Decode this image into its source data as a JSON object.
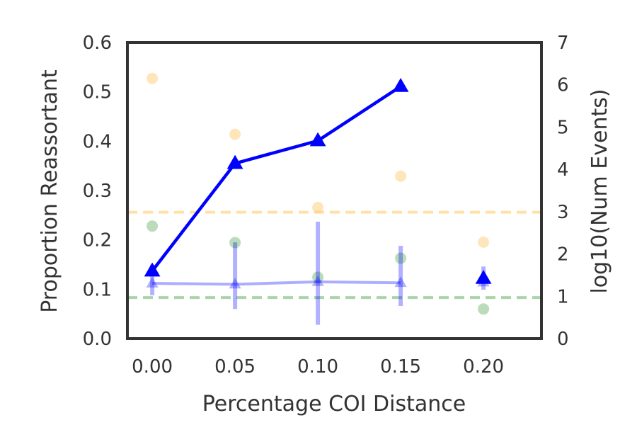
{
  "chart_data": {
    "type": "line",
    "xlabel": "Percentage COI Distance",
    "ylabel": "Proportion Reassortant",
    "y2label": "log10(Num Events)",
    "x_ticks": [
      "0.00",
      "0.05",
      "0.10",
      "0.15",
      "0.20"
    ],
    "y_ticks": [
      "0.0",
      "0.1",
      "0.2",
      "0.3",
      "0.4",
      "0.5",
      "0.6"
    ],
    "y2_ticks": [
      "0",
      "1",
      "2",
      "3",
      "4",
      "5",
      "6",
      "7"
    ],
    "xlim": [
      -0.015,
      0.235
    ],
    "ylim": [
      0,
      0.6
    ],
    "y2lim": [
      0,
      7
    ],
    "grid": false,
    "series": [
      {
        "axis": "left",
        "style": "solid-line-triangles",
        "color": "#0000ff",
        "points": [
          {
            "x": 0.0,
            "y": 0.137
          },
          {
            "x": 0.05,
            "y": 0.355
          },
          {
            "x": 0.1,
            "y": 0.401
          },
          {
            "x": 0.15,
            "y": 0.511
          }
        ]
      },
      {
        "axis": "left",
        "style": "triangle-only",
        "color": "#0000ff",
        "points": [
          {
            "x": 0.2,
            "y": 0.122
          }
        ]
      },
      {
        "axis": "left",
        "style": "faded-line-triangles-with-error-bars",
        "color": "#0000ff",
        "points": [
          {
            "x": 0.0,
            "y": 0.112,
            "lo": 0.088,
            "hi": 0.15
          },
          {
            "x": 0.05,
            "y": 0.11,
            "lo": 0.06,
            "hi": 0.195
          },
          {
            "x": 0.1,
            "y": 0.115,
            "lo": 0.028,
            "hi": 0.237
          },
          {
            "x": 0.15,
            "y": 0.113,
            "lo": 0.066,
            "hi": 0.188
          },
          {
            "x": 0.2,
            "y": 0.114,
            "lo": 0.099,
            "hi": 0.146
          }
        ]
      },
      {
        "axis": "right",
        "style": "points",
        "color": "#ffc766",
        "points": [
          {
            "x": 0.0,
            "y": 6.15
          },
          {
            "x": 0.05,
            "y": 4.83
          },
          {
            "x": 0.1,
            "y": 3.1
          },
          {
            "x": 0.15,
            "y": 3.84
          },
          {
            "x": 0.2,
            "y": 2.28
          }
        ]
      },
      {
        "axis": "right",
        "style": "points",
        "color": "#66b266",
        "points": [
          {
            "x": 0.0,
            "y": 2.66
          },
          {
            "x": 0.05,
            "y": 2.27
          },
          {
            "x": 0.1,
            "y": 1.45
          },
          {
            "x": 0.15,
            "y": 1.9
          },
          {
            "x": 0.2,
            "y": 0.7
          }
        ]
      }
    ],
    "reference_lines": [
      {
        "axis": "left",
        "y": 0.256,
        "color": "#ffc766",
        "style": "dashed"
      },
      {
        "axis": "left",
        "y": 0.083,
        "color": "#66b266",
        "style": "dashed"
      }
    ]
  }
}
